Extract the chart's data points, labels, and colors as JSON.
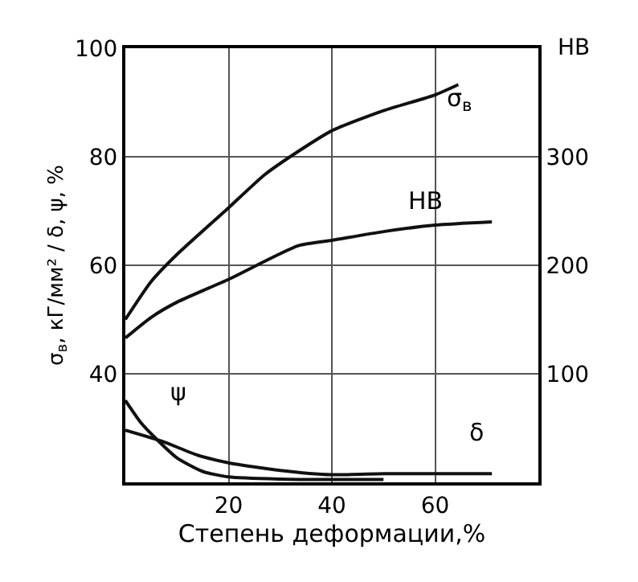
{
  "chart_data": {
    "type": "line",
    "xlabel": "Степень деформации,%",
    "ylabel": "σ$_{в}$, кГ/мм² / δ, ψ, %",
    "y2label": "HB",
    "xlim": [
      0,
      80
    ],
    "xticks": [
      {
        "value": 0,
        "label": null
      },
      20,
      40,
      60,
      {
        "value": 80,
        "label": null
      }
    ],
    "ylim": [
      20,
      100
    ],
    "yticks": [
      {
        "value": 20,
        "label": null
      },
      40,
      60,
      80,
      100
    ],
    "y2lim": [
      0,
      400
    ],
    "y2ticks": [
      100,
      200,
      300
    ],
    "grid": true,
    "marker": "none",
    "line_style": "solid",
    "series": [
      {
        "color": "#111111",
        "x": [
          0,
          5,
          10,
          20,
          27,
          33.5,
          40,
          50,
          60,
          64.5
        ],
        "values": [
          50,
          57,
          62,
          70.6,
          76.7,
          81,
          84.8,
          88.5,
          91.4,
          93.3
        ]
      },
      {
        "color": "#111111",
        "axis": "y2",
        "x": [
          0,
          5,
          10,
          20,
          33.5,
          40,
          50,
          60,
          71
        ],
        "values": [
          133,
          152,
          166,
          187,
          218,
          223,
          231,
          237,
          240
        ]
      },
      {
        "color": "#111111",
        "x": [
          0,
          3,
          6,
          10,
          15,
          20,
          30,
          40,
          50
        ],
        "values": [
          35.1,
          31,
          28,
          24.5,
          22,
          21,
          20.6,
          20.5,
          20.5
        ]
      },
      {
        "color": "#111111",
        "x": [
          0,
          7.3,
          14,
          20,
          30,
          40,
          50,
          60,
          71
        ],
        "values": [
          29.6,
          27.5,
          25,
          23.6,
          22.2,
          21.4,
          21.6,
          21.6,
          21.6
        ]
      }
    ],
    "annotations": [
      "σ$_{в}$",
      "HB",
      "ψ",
      "δ"
    ]
  }
}
